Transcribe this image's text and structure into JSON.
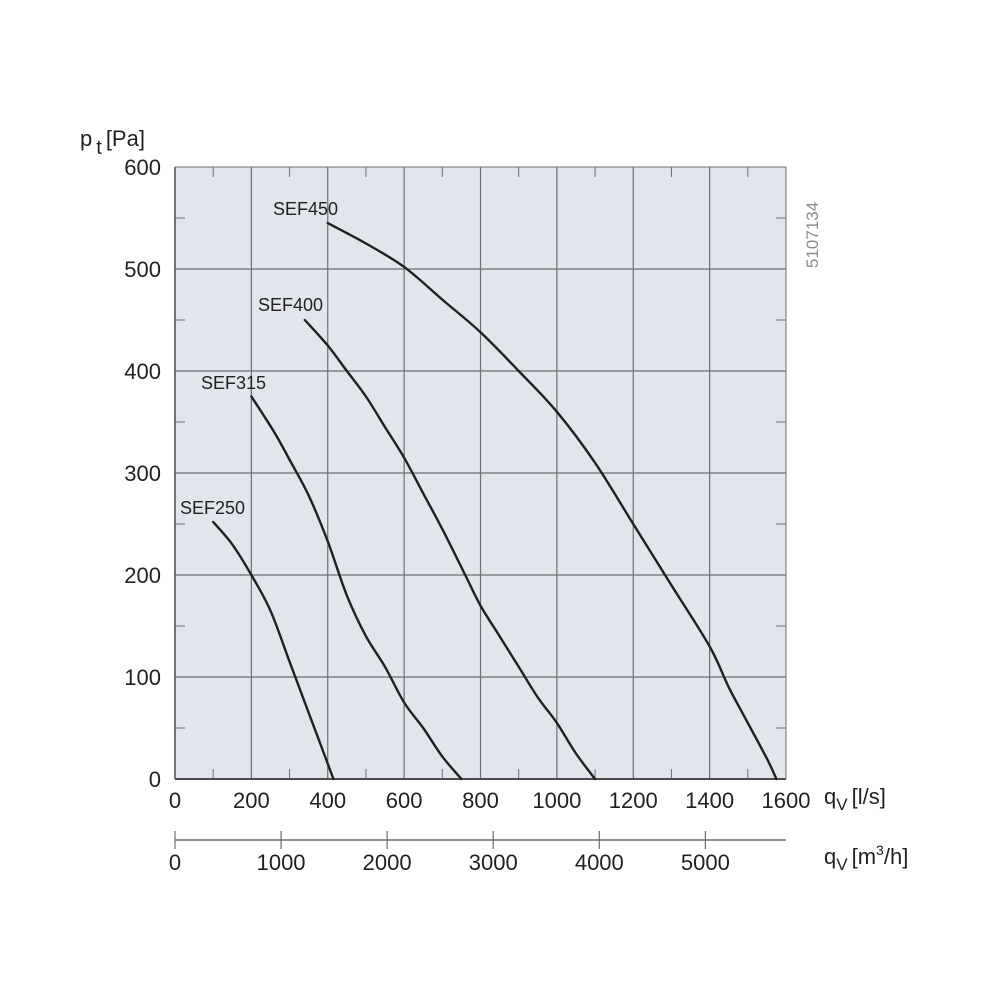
{
  "chart_data": {
    "type": "line",
    "title": "",
    "xlabel": "q_V [l/s]",
    "ylabel": "p_t [Pa]",
    "secondary_xlabel": "q_V [m3/h]",
    "xlim": [
      0,
      1600
    ],
    "ylim": [
      0,
      600
    ],
    "x_ticks": [
      0,
      200,
      400,
      600,
      800,
      1000,
      1200,
      1400,
      1600
    ],
    "y_ticks": [
      0,
      100,
      200,
      300,
      400,
      500,
      600
    ],
    "secondary_x_ticks": [
      0,
      1000,
      2000,
      3000,
      4000,
      5000
    ],
    "grid": true,
    "legend_position": "inline labels at curve starts",
    "series": [
      {
        "name": "SEF250",
        "x": [
          100,
          150,
          200,
          250,
          300,
          330,
          360,
          390,
          410,
          415
        ],
        "y": [
          252,
          230,
          200,
          165,
          115,
          85,
          55,
          25,
          5,
          0
        ]
      },
      {
        "name": "SEF315",
        "x": [
          200,
          260,
          300,
          350,
          400,
          450,
          500,
          550,
          600,
          650,
          700,
          750
        ],
        "y": [
          375,
          340,
          313,
          278,
          233,
          180,
          140,
          110,
          75,
          50,
          22,
          0
        ]
      },
      {
        "name": "SEF400",
        "x": [
          340,
          400,
          450,
          500,
          550,
          600,
          650,
          700,
          760,
          800,
          850,
          900,
          950,
          1000,
          1050,
          1100
        ],
        "y": [
          450,
          425,
          400,
          375,
          345,
          315,
          280,
          245,
          200,
          170,
          140,
          110,
          80,
          55,
          25,
          0
        ]
      },
      {
        "name": "SEF450",
        "x": [
          400,
          500,
          600,
          700,
          800,
          900,
          1000,
          1100,
          1200,
          1300,
          1400,
          1450,
          1500,
          1550,
          1575
        ],
        "y": [
          545,
          525,
          502,
          470,
          438,
          400,
          360,
          310,
          250,
          190,
          130,
          90,
          55,
          20,
          0
        ]
      }
    ],
    "annotations": [
      "5107134"
    ]
  },
  "y_axis": {
    "symbol": "p",
    "subscript": "t",
    "unit": "[Pa]",
    "tick_labels": [
      "600",
      "500",
      "400",
      "300",
      "200",
      "100",
      "0"
    ]
  },
  "x_axis": {
    "symbol": "q",
    "subscript": "V",
    "unit": "[l/s]",
    "tick_labels": [
      "0",
      "200",
      "400",
      "600",
      "800",
      "1000",
      "1200",
      "1400",
      "1600"
    ]
  },
  "x_axis_secondary": {
    "symbol": "q",
    "subscript": "V",
    "unit_prefix": "[m",
    "unit_sup": "3",
    "unit_suffix": "/h]",
    "tick_labels": [
      "0",
      "1000",
      "2000",
      "3000",
      "4000",
      "5000"
    ]
  },
  "curve_labels": [
    "SEF450",
    "SEF400",
    "SEF315",
    "SEF250"
  ],
  "doc_code": "5107134",
  "colors": {
    "plot_background": "#e1e6ed",
    "grid": "#6d6e71",
    "curve": "#231f20",
    "text": "#231f20",
    "code_text": "#8a8c8e"
  }
}
